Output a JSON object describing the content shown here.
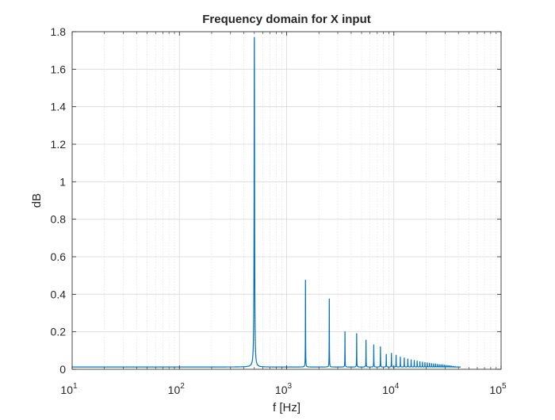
{
  "chart_data": {
    "type": "line",
    "title": "Frequency domain for X input",
    "xlabel": "f [Hz]",
    "ylabel": "dB",
    "x_scale": "log",
    "xlim": [
      10,
      100000
    ],
    "ylim": [
      0,
      1.8
    ],
    "grid": true,
    "minor_grid_x": true,
    "x_ticks": [
      {
        "value": 10,
        "base": "10",
        "exp": "1"
      },
      {
        "value": 100,
        "base": "10",
        "exp": "2"
      },
      {
        "value": 1000,
        "base": "10",
        "exp": "3"
      },
      {
        "value": 10000,
        "base": "10",
        "exp": "4"
      },
      {
        "value": 100000,
        "base": "10",
        "exp": "5"
      }
    ],
    "y_ticks": [
      {
        "value": 0,
        "label": "0"
      },
      {
        "value": 0.2,
        "label": "0.2"
      },
      {
        "value": 0.4,
        "label": "0.4"
      },
      {
        "value": 0.6,
        "label": "0.6"
      },
      {
        "value": 0.8,
        "label": "0.8"
      },
      {
        "value": 1.0,
        "label": "1"
      },
      {
        "value": 1.2,
        "label": "1.2"
      },
      {
        "value": 1.4,
        "label": "1.4"
      },
      {
        "value": 1.6,
        "label": "1.6"
      },
      {
        "value": 1.8,
        "label": "1.8"
      }
    ],
    "series": [
      {
        "color": "#0072BD",
        "baseline": 0.012,
        "x_end": 42000,
        "peaks": [
          {
            "x": 500,
            "y": 1.77
          },
          {
            "x": 1500,
            "y": 0.475
          },
          {
            "x": 2500,
            "y": 0.375
          },
          {
            "x": 3500,
            "y": 0.2
          },
          {
            "x": 4500,
            "y": 0.19
          },
          {
            "x": 5500,
            "y": 0.155
          },
          {
            "x": 6500,
            "y": 0.13
          },
          {
            "x": 7500,
            "y": 0.12
          },
          {
            "x": 8500,
            "y": 0.08
          },
          {
            "x": 9500,
            "y": 0.085
          },
          {
            "x": 10500,
            "y": 0.075
          },
          {
            "x": 11500,
            "y": 0.065
          },
          {
            "x": 12500,
            "y": 0.06
          },
          {
            "x": 13500,
            "y": 0.055
          },
          {
            "x": 14500,
            "y": 0.05
          },
          {
            "x": 15500,
            "y": 0.047
          },
          {
            "x": 16500,
            "y": 0.044
          },
          {
            "x": 17500,
            "y": 0.041
          },
          {
            "x": 18500,
            "y": 0.038
          },
          {
            "x": 19500,
            "y": 0.036
          },
          {
            "x": 20500,
            "y": 0.034
          },
          {
            "x": 21500,
            "y": 0.032
          },
          {
            "x": 22500,
            "y": 0.03
          },
          {
            "x": 23500,
            "y": 0.029
          },
          {
            "x": 24500,
            "y": 0.028
          },
          {
            "x": 25500,
            "y": 0.026
          },
          {
            "x": 26500,
            "y": 0.025
          },
          {
            "x": 27500,
            "y": 0.024
          },
          {
            "x": 28500,
            "y": 0.023
          },
          {
            "x": 29500,
            "y": 0.022
          },
          {
            "x": 30500,
            "y": 0.021
          },
          {
            "x": 31500,
            "y": 0.02
          },
          {
            "x": 32500,
            "y": 0.019
          },
          {
            "x": 33500,
            "y": 0.018
          },
          {
            "x": 34500,
            "y": 0.017
          },
          {
            "x": 35500,
            "y": 0.016
          },
          {
            "x": 36500,
            "y": 0.015
          },
          {
            "x": 37500,
            "y": 0.014
          }
        ]
      }
    ]
  }
}
